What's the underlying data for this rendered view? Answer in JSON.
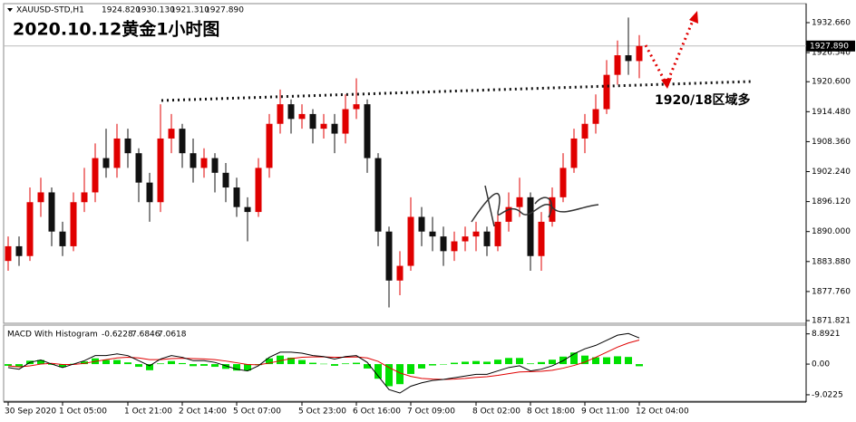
{
  "chart_data": {
    "type": "candlestick",
    "header": {
      "symbol": "XAUUSD-STD,H1",
      "ohlc": [
        "1924.820",
        "1930.130",
        "1921.310",
        "1927.890"
      ]
    },
    "title": "2020.10.12黄金1小时图",
    "annotation": "1920/18区域多",
    "categories": [
      "30 Sep 2020",
      null,
      null,
      null,
      null,
      "1 Oct 05:00",
      null,
      null,
      null,
      null,
      null,
      "1 Oct 21:00",
      null,
      null,
      null,
      null,
      "2 Oct 14:00",
      null,
      null,
      null,
      null,
      "5 Oct 07:00",
      null,
      null,
      null,
      null,
      null,
      "5 Oct 23:00",
      null,
      null,
      null,
      null,
      "6 Oct 16:00",
      null,
      null,
      null,
      null,
      "7 Oct 09:00",
      null,
      null,
      null,
      null,
      null,
      "8 Oct 02:00",
      null,
      null,
      null,
      null,
      "8 Oct 18:00",
      null,
      null,
      null,
      null,
      "9 Oct 11:00",
      null,
      null,
      null,
      null,
      "12 Oct 04:00"
    ],
    "open": [
      1884,
      1887,
      1885,
      1896,
      1898,
      1890,
      1887,
      1896,
      1898,
      1905,
      1903,
      1909,
      1906,
      1900,
      1896,
      1909,
      1911,
      1906,
      1903,
      1905,
      1902,
      1899,
      1895,
      1894,
      1903,
      1912,
      1916,
      1913,
      1914,
      1911,
      1912,
      1910,
      1915,
      1916,
      1905,
      1890,
      1880,
      1883,
      1893,
      1890,
      1889,
      1886,
      1888,
      1889,
      1890,
      1887,
      1892,
      1895,
      1897,
      1885,
      1892,
      1897,
      1903,
      1909,
      1912,
      1915,
      1922,
      1926,
      1924.82
    ],
    "high": [
      1889,
      1889,
      1899,
      1901,
      1899,
      1892,
      1898,
      1903,
      1908,
      1911,
      1912,
      1911,
      1907,
      1902,
      1916,
      1914,
      1912,
      1909,
      1907,
      1906,
      1904,
      1901,
      1897,
      1905,
      1914,
      1919,
      1917,
      1916,
      1915,
      1914,
      1914,
      1918,
      1921.3,
      1917,
      1906,
      1891,
      1886,
      1897,
      1895,
      1893,
      1891,
      1890,
      1891,
      1892,
      1891,
      1894,
      1898,
      1901,
      1898,
      1894,
      1899,
      1906,
      1911,
      1914,
      1918,
      1925,
      1929,
      1933.7,
      1930.13
    ],
    "low": [
      1882,
      1883,
      1884,
      1893,
      1887,
      1885,
      1886,
      1894,
      1896,
      1901,
      1901,
      1903,
      1896,
      1892,
      1894,
      1906,
      1903,
      1900,
      1901,
      1898,
      1896,
      1893,
      1888,
      1893,
      1901,
      1910,
      1910,
      1911,
      1908,
      1909,
      1906,
      1908,
      1913,
      1902,
      1887,
      1874.5,
      1877,
      1882,
      1887,
      1886,
      1883,
      1884,
      1886,
      1886,
      1885,
      1886,
      1890,
      1893,
      1882,
      1882,
      1891,
      1896,
      1902,
      1906,
      1910,
      1914,
      1920,
      1922,
      1921.31
    ],
    "close": [
      1887,
      1885,
      1896,
      1898,
      1890,
      1887,
      1896,
      1898,
      1905,
      1903,
      1909,
      1906,
      1900,
      1896,
      1909,
      1911,
      1906,
      1903,
      1905,
      1902,
      1899,
      1895,
      1894,
      1903,
      1912,
      1916,
      1913,
      1914,
      1911,
      1912,
      1910,
      1915,
      1916,
      1905,
      1890,
      1880,
      1883,
      1893,
      1890,
      1889,
      1886,
      1888,
      1889,
      1890,
      1887,
      1892,
      1895,
      1897,
      1885,
      1892,
      1897,
      1903,
      1909,
      1912,
      1915,
      1922,
      1926,
      1924.82,
      1927.89
    ],
    "up_color": "#e00000",
    "down_color": "#111111",
    "ylim": [
      1871.27,
      1936.36
    ],
    "yticks": [
      {
        "value": 1932.66,
        "label": "1932.660"
      },
      {
        "value": 1926.54,
        "label": "1926.540"
      },
      {
        "value": 1920.6,
        "label": "1920.600"
      },
      {
        "value": 1914.48,
        "label": "1914.480"
      },
      {
        "value": 1908.36,
        "label": "1908.360"
      },
      {
        "value": 1902.24,
        "label": "1902.240"
      },
      {
        "value": 1896.12,
        "label": "1896.120"
      },
      {
        "value": 1890,
        "label": "1890.000"
      },
      {
        "value": 1883.88,
        "label": "1883.880"
      },
      {
        "value": 1877.76,
        "label": "1877.760"
      },
      {
        "value": 1871.821,
        "label": "1871.821"
      }
    ],
    "last_price": {
      "value": 1927.89,
      "label": "1927.890"
    },
    "macd": {
      "name": "MACD With Histogram",
      "readout": [
        "-0.6228",
        "7.6846",
        "7.0618"
      ],
      "macd": [
        -1,
        -1.5,
        0.5,
        1.2,
        0,
        -1,
        0,
        1,
        2.5,
        2.5,
        3,
        2.5,
        1,
        -0.5,
        1.5,
        2.5,
        2,
        1,
        1,
        0.5,
        -0.5,
        -1.5,
        -2,
        -0.5,
        2,
        3.5,
        3.5,
        3.2,
        2.5,
        2.2,
        1.5,
        2.2,
        2.5,
        0.5,
        -3.5,
        -7.5,
        -8.5,
        -6.5,
        -5.5,
        -4.8,
        -4.5,
        -4,
        -3.5,
        -3,
        -3,
        -2,
        -1,
        -0.5,
        -2,
        -1.5,
        -0.5,
        1,
        3,
        4.5,
        5.5,
        7,
        8.5,
        9,
        7.6846
      ],
      "signal": [
        -0.5,
        -0.8,
        -0.5,
        0,
        0.2,
        -0.1,
        -0.1,
        0.2,
        0.8,
        1.3,
        1.8,
        2,
        1.8,
        1.3,
        1.3,
        1.6,
        1.7,
        1.6,
        1.5,
        1.3,
        0.9,
        0.4,
        -0.1,
        -0.2,
        0.3,
        1,
        1.6,
        2,
        2.1,
        2.1,
        2,
        2,
        2.1,
        1.8,
        0.8,
        -1,
        -2.6,
        -3.6,
        -4.2,
        -4.4,
        -4.5,
        -4.4,
        -4.2,
        -3.9,
        -3.7,
        -3.3,
        -2.8,
        -2.3,
        -2.2,
        -2.1,
        -1.8,
        -1.2,
        -0.4,
        0.6,
        2,
        3.5,
        5,
        6.2,
        7.0618
      ],
      "histogram": [
        -0.5,
        -0.7,
        1,
        1.2,
        -0.2,
        -0.9,
        0.1,
        0.8,
        1.7,
        1.2,
        1.2,
        0.5,
        -0.8,
        -1.8,
        0.2,
        0.9,
        0.3,
        -0.6,
        -0.5,
        -0.8,
        -1.4,
        -1.9,
        -1.9,
        -0.3,
        1.7,
        2.5,
        1.9,
        1.2,
        0.4,
        0.1,
        -0.5,
        0.2,
        0.4,
        -1.3,
        -4.3,
        -6.5,
        -5.9,
        -2.9,
        -1.3,
        -0.4,
        0,
        0.4,
        0.7,
        0.9,
        0.7,
        1.3,
        1.8,
        1.8,
        0.2,
        0.6,
        1.3,
        2.2,
        3.4,
        2.5,
        2,
        2,
        2.3,
        2.1,
        -0.6228
      ],
      "macd_color": "#000000",
      "signal_color": "#e00000",
      "histogram_color": "#00e000",
      "ylim": [
        -10.9,
        11.2
      ],
      "yticks": [
        {
          "value": 8.8921,
          "label": "8.8921"
        },
        {
          "value": 0,
          "label": "0.00"
        },
        {
          "value": -9.0225,
          "label": "-9.0225"
        }
      ]
    }
  }
}
